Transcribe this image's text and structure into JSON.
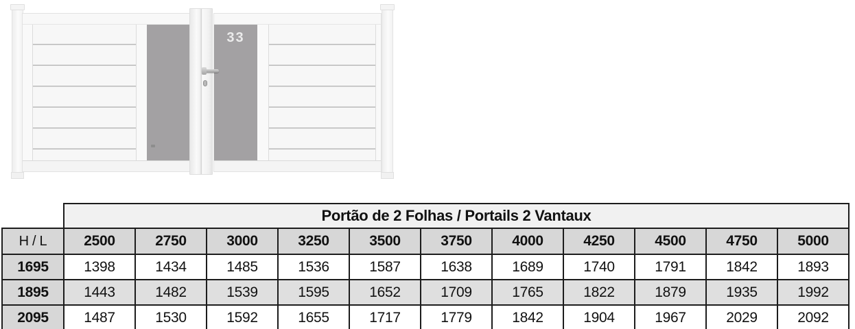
{
  "gate": {
    "number_label": "33"
  },
  "table": {
    "title": "Portão de 2 Folhas / Portails 2 Vantaux",
    "corner_label": "H / L",
    "column_headers": [
      "2500",
      "2750",
      "3000",
      "3250",
      "3500",
      "3750",
      "4000",
      "4250",
      "4500",
      "4750",
      "5000"
    ],
    "rows": [
      {
        "h": "1695",
        "values": [
          "1398",
          "1434",
          "1485",
          "1536",
          "1587",
          "1638",
          "1689",
          "1740",
          "1791",
          "1842",
          "1893"
        ]
      },
      {
        "h": "1895",
        "values": [
          "1443",
          "1482",
          "1539",
          "1595",
          "1652",
          "1709",
          "1765",
          "1822",
          "1879",
          "1935",
          "1992"
        ]
      },
      {
        "h": "2095",
        "values": [
          "1487",
          "1530",
          "1592",
          "1655",
          "1717",
          "1779",
          "1842",
          "1904",
          "1967",
          "2029",
          "2092"
        ]
      }
    ]
  },
  "colors": {
    "table_border": "#1c1c1c",
    "title_bg": "#f1f1f1",
    "header_bg": "#d7d7d7",
    "zebra_bg": "#dfdfdf",
    "gate_panel_gray": "#a3a1a3"
  }
}
